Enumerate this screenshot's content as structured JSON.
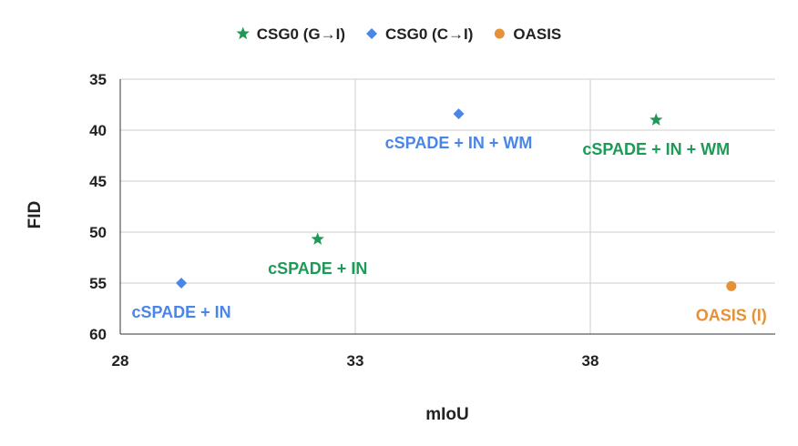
{
  "chart_data": {
    "type": "scatter",
    "title": "",
    "xlabel": "mIoU",
    "ylabel": "FID",
    "xlim": [
      28,
      42
    ],
    "ylim": [
      35,
      60
    ],
    "y_inverted": true,
    "xticks": [
      28,
      33,
      38
    ],
    "yticks": [
      35,
      40,
      45,
      50,
      55,
      60
    ],
    "grid": true,
    "legend_position": "top",
    "series": [
      {
        "name": "CSG0 (G→I)",
        "marker": "star",
        "color": "#1e9a57",
        "points": [
          {
            "x": 32.2,
            "y": 50.7,
            "label": "cSPADE + IN"
          },
          {
            "x": 39.4,
            "y": 39.0,
            "label": "cSPADE + IN + WM"
          }
        ]
      },
      {
        "name": "CSG0 (C→I)",
        "marker": "diamond",
        "color": "#4a86e8",
        "points": [
          {
            "x": 29.3,
            "y": 55.0,
            "label": "cSPADE + IN"
          },
          {
            "x": 35.2,
            "y": 38.4,
            "label": "cSPADE + IN + WM"
          }
        ]
      },
      {
        "name": "OASIS",
        "marker": "circle",
        "color": "#e69138",
        "points": [
          {
            "x": 41.0,
            "y": 55.3,
            "label": "OASIS (I)"
          }
        ]
      }
    ]
  }
}
